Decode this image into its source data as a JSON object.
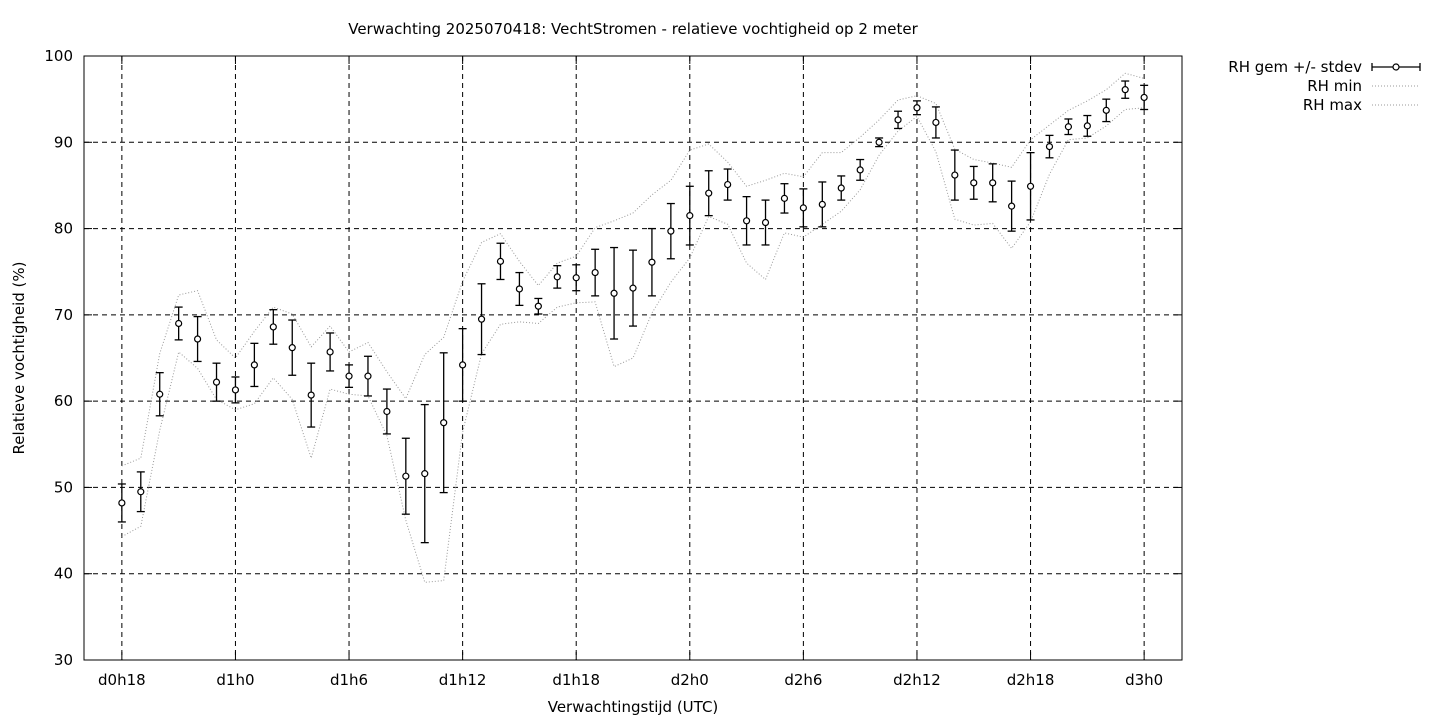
{
  "chart_data": {
    "type": "line",
    "title": "Verwachting 2025070418: VechtStromen - relatieve vochtigheid op 2 meter",
    "xlabel": "Verwachtingstijd (UTC)",
    "ylabel": "Relatieve vochtigheid (%)",
    "ylim": [
      30,
      100
    ],
    "xlim": [
      -2,
      56
    ],
    "yticks": [
      30,
      40,
      50,
      60,
      70,
      80,
      90,
      100
    ],
    "xticks": [
      {
        "x": 0,
        "label": "d0h18"
      },
      {
        "x": 6,
        "label": "d1h0"
      },
      {
        "x": 12,
        "label": "d1h6"
      },
      {
        "x": 18,
        "label": "d1h12"
      },
      {
        "x": 24,
        "label": "d1h18"
      },
      {
        "x": 30,
        "label": "d2h0"
      },
      {
        "x": 36,
        "label": "d2h6"
      },
      {
        "x": 42,
        "label": "d2h12"
      },
      {
        "x": 48,
        "label": "d2h18"
      },
      {
        "x": 54,
        "label": "d3h0"
      }
    ],
    "grid": true,
    "legend_position": "outside-top-right",
    "x": [
      0,
      1,
      2,
      3,
      4,
      5,
      6,
      7,
      8,
      9,
      10,
      11,
      12,
      13,
      14,
      15,
      16,
      17,
      18,
      19,
      20,
      21,
      22,
      23,
      24,
      25,
      26,
      27,
      28,
      29,
      30,
      31,
      32,
      33,
      34,
      35,
      36,
      37,
      38,
      39,
      40,
      41,
      42,
      43,
      44,
      45,
      46,
      47,
      48,
      49,
      50,
      51,
      52,
      53,
      54
    ],
    "series": [
      {
        "name": "RH gem +/- stdev",
        "style": "errorbars",
        "values": [
          48.2,
          49.5,
          60.8,
          69.0,
          67.2,
          62.2,
          61.3,
          64.2,
          68.6,
          66.2,
          60.7,
          65.7,
          62.9,
          62.9,
          58.8,
          51.3,
          51.6,
          57.5,
          64.2,
          69.5,
          76.2,
          73.0,
          71.0,
          74.4,
          74.3,
          74.9,
          72.5,
          73.1,
          76.1,
          79.7,
          81.5,
          84.1,
          85.1,
          80.9,
          80.7,
          83.5,
          82.4,
          82.8,
          84.7,
          86.8,
          90.0,
          92.6,
          94.0,
          92.3,
          86.2,
          85.3,
          85.3,
          82.6,
          84.9,
          89.5,
          91.8,
          91.9,
          93.7,
          96.1,
          95.2
        ],
        "stdev": [
          2.2,
          2.3,
          2.5,
          1.9,
          2.6,
          2.2,
          1.5,
          2.5,
          2.0,
          3.2,
          3.7,
          2.2,
          1.3,
          2.3,
          2.6,
          4.4,
          8.0,
          8.1,
          4.2,
          4.1,
          2.1,
          1.9,
          0.9,
          1.3,
          1.5,
          2.7,
          5.3,
          4.4,
          3.9,
          3.2,
          3.4,
          2.6,
          1.8,
          2.8,
          2.6,
          1.7,
          2.2,
          2.6,
          1.4,
          1.2,
          0.5,
          1.0,
          0.8,
          1.8,
          2.9,
          1.9,
          2.2,
          2.9,
          3.9,
          1.3,
          0.9,
          1.2,
          1.3,
          1.0,
          1.4
        ]
      },
      {
        "name": "RH min",
        "style": "dotted",
        "values": [
          44.3,
          45.5,
          56.6,
          65.7,
          63.8,
          60.2,
          59.0,
          59.7,
          62.7,
          60.2,
          53.4,
          61.4,
          60.8,
          60.6,
          56.0,
          46.2,
          39.0,
          39.2,
          56.4,
          65.5,
          68.9,
          69.2,
          69.0,
          70.9,
          71.4,
          71.5,
          64.0,
          65.0,
          70.2,
          73.8,
          76.6,
          81.4,
          80.5,
          76.0,
          74.1,
          79.5,
          79.0,
          80.5,
          82.0,
          84.5,
          88.5,
          91.3,
          93.0,
          88.9,
          81.1,
          80.4,
          80.6,
          77.7,
          80.8,
          86.3,
          90.3,
          90.5,
          91.9,
          93.8,
          94.0
        ]
      },
      {
        "name": "RH max",
        "style": "dotted",
        "values": [
          52.5,
          53.4,
          65.5,
          72.3,
          72.8,
          67.1,
          65.0,
          68.1,
          70.9,
          70.1,
          66.3,
          68.7,
          65.7,
          66.8,
          63.4,
          60.3,
          65.4,
          67.4,
          73.9,
          78.4,
          79.4,
          76.2,
          73.4,
          76.0,
          76.8,
          80.1,
          80.9,
          81.8,
          83.9,
          85.6,
          89.1,
          89.8,
          87.7,
          84.9,
          85.6,
          86.4,
          86.0,
          88.8,
          88.8,
          90.6,
          92.6,
          94.9,
          95.4,
          94.5,
          89.2,
          88.0,
          87.6,
          87.1,
          90.3,
          92.0,
          93.7,
          94.8,
          96.1,
          98.0,
          97.4
        ]
      }
    ]
  }
}
